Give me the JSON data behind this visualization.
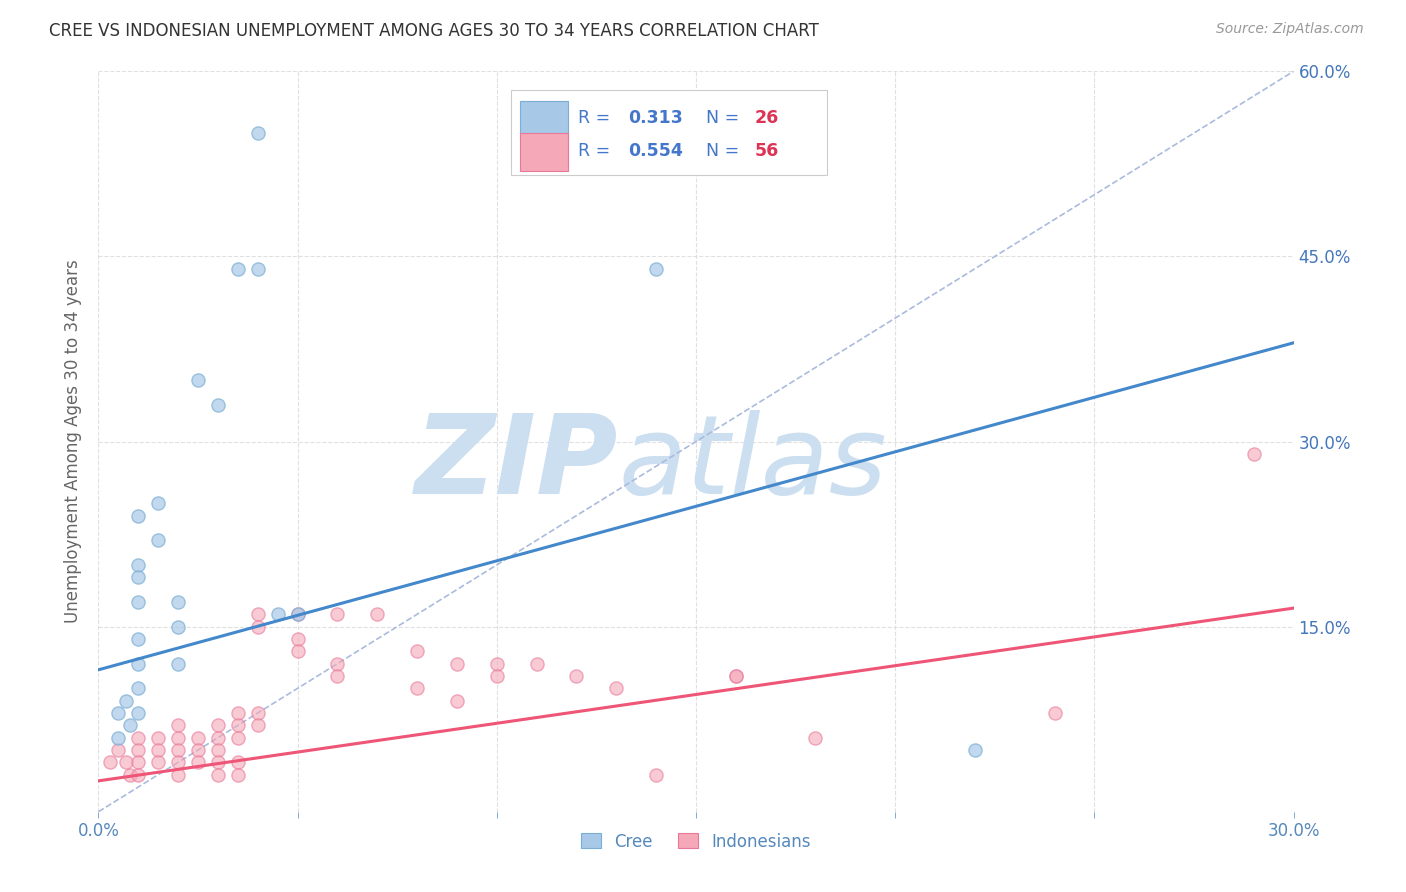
{
  "title": "CREE VS INDONESIAN UNEMPLOYMENT AMONG AGES 30 TO 34 YEARS CORRELATION CHART",
  "source": "Source: ZipAtlas.com",
  "ylabel": "Unemployment Among Ages 30 to 34 years",
  "xlim": [
    0.0,
    0.3
  ],
  "ylim": [
    0.0,
    0.6
  ],
  "cree_color": "#a8c8e8",
  "cree_edge_color": "#7aaed4",
  "indonesian_color": "#f4a8b8",
  "indonesian_edge_color": "#e87898",
  "cree_scatter": [
    [
      0.005,
      0.06
    ],
    [
      0.005,
      0.08
    ],
    [
      0.007,
      0.09
    ],
    [
      0.008,
      0.07
    ],
    [
      0.01,
      0.24
    ],
    [
      0.01,
      0.2
    ],
    [
      0.01,
      0.19
    ],
    [
      0.01,
      0.17
    ],
    [
      0.01,
      0.14
    ],
    [
      0.01,
      0.12
    ],
    [
      0.01,
      0.1
    ],
    [
      0.01,
      0.08
    ],
    [
      0.015,
      0.25
    ],
    [
      0.015,
      0.22
    ],
    [
      0.02,
      0.17
    ],
    [
      0.02,
      0.15
    ],
    [
      0.02,
      0.12
    ],
    [
      0.025,
      0.35
    ],
    [
      0.03,
      0.33
    ],
    [
      0.035,
      0.44
    ],
    [
      0.04,
      0.55
    ],
    [
      0.04,
      0.44
    ],
    [
      0.045,
      0.16
    ],
    [
      0.05,
      0.16
    ],
    [
      0.14,
      0.44
    ],
    [
      0.22,
      0.05
    ]
  ],
  "indonesian_scatter": [
    [
      0.003,
      0.04
    ],
    [
      0.005,
      0.05
    ],
    [
      0.007,
      0.04
    ],
    [
      0.008,
      0.03
    ],
    [
      0.01,
      0.06
    ],
    [
      0.01,
      0.05
    ],
    [
      0.01,
      0.04
    ],
    [
      0.01,
      0.03
    ],
    [
      0.015,
      0.06
    ],
    [
      0.015,
      0.05
    ],
    [
      0.015,
      0.04
    ],
    [
      0.02,
      0.07
    ],
    [
      0.02,
      0.06
    ],
    [
      0.02,
      0.05
    ],
    [
      0.02,
      0.04
    ],
    [
      0.02,
      0.03
    ],
    [
      0.025,
      0.06
    ],
    [
      0.025,
      0.05
    ],
    [
      0.025,
      0.04
    ],
    [
      0.03,
      0.07
    ],
    [
      0.03,
      0.06
    ],
    [
      0.03,
      0.05
    ],
    [
      0.03,
      0.04
    ],
    [
      0.03,
      0.03
    ],
    [
      0.035,
      0.08
    ],
    [
      0.035,
      0.07
    ],
    [
      0.035,
      0.06
    ],
    [
      0.035,
      0.04
    ],
    [
      0.035,
      0.03
    ],
    [
      0.04,
      0.16
    ],
    [
      0.04,
      0.15
    ],
    [
      0.04,
      0.08
    ],
    [
      0.04,
      0.07
    ],
    [
      0.05,
      0.16
    ],
    [
      0.05,
      0.14
    ],
    [
      0.05,
      0.13
    ],
    [
      0.06,
      0.16
    ],
    [
      0.06,
      0.12
    ],
    [
      0.06,
      0.11
    ],
    [
      0.07,
      0.16
    ],
    [
      0.08,
      0.13
    ],
    [
      0.08,
      0.1
    ],
    [
      0.09,
      0.12
    ],
    [
      0.09,
      0.09
    ],
    [
      0.1,
      0.12
    ],
    [
      0.1,
      0.11
    ],
    [
      0.11,
      0.12
    ],
    [
      0.12,
      0.11
    ],
    [
      0.13,
      0.1
    ],
    [
      0.14,
      0.03
    ],
    [
      0.16,
      0.11
    ],
    [
      0.16,
      0.11
    ],
    [
      0.18,
      0.06
    ],
    [
      0.24,
      0.08
    ],
    [
      0.29,
      0.29
    ]
  ],
  "cree_line": {
    "x0": 0.0,
    "y0": 0.115,
    "x1": 0.3,
    "y1": 0.38
  },
  "indonesian_line": {
    "x0": 0.0,
    "y0": 0.025,
    "x1": 0.3,
    "y1": 0.165
  },
  "diagonal_line": {
    "x0": 0.0,
    "y0": 0.0,
    "x1": 0.3,
    "y1": 0.6
  },
  "background_color": "#ffffff",
  "grid_color": "#dddddd",
  "title_color": "#333333",
  "axis_label_color": "#666666",
  "tick_color": "#5588bb",
  "right_tick_color": "#4477bb",
  "watermark_zip": "ZIP",
  "watermark_atlas": "atlas",
  "watermark_color": "#ccdff0",
  "legend_text_color": "#4477cc",
  "legend_N_color": "#dd3355"
}
